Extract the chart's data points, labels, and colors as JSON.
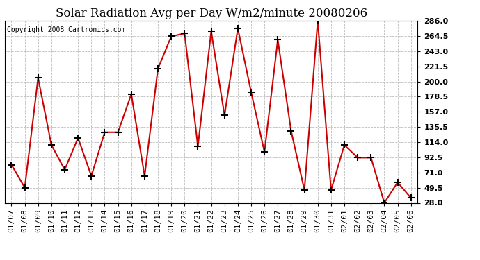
{
  "title": "Solar Radiation Avg per Day W/m2/minute 20080206",
  "copyright": "Copyright 2008 Cartronics.com",
  "dates": [
    "01/07",
    "01/08",
    "01/09",
    "01/10",
    "01/11",
    "01/12",
    "01/13",
    "01/14",
    "01/15",
    "01/16",
    "01/17",
    "01/18",
    "01/19",
    "01/20",
    "01/21",
    "01/22",
    "01/23",
    "01/24",
    "01/25",
    "01/26",
    "01/27",
    "01/28",
    "01/29",
    "01/30",
    "01/31",
    "02/01",
    "02/02",
    "02/03",
    "02/04",
    "02/05",
    "02/06"
  ],
  "values": [
    82,
    49.5,
    205,
    110,
    75,
    120,
    66,
    128,
    128,
    182,
    66,
    218,
    264,
    268,
    108,
    271,
    152,
    275,
    185,
    100,
    259,
    130,
    46,
    286,
    46,
    110,
    92,
    92,
    28,
    57,
    35
  ],
  "line_color": "#cc0000",
  "marker_color": "#000000",
  "bg_color": "#ffffff",
  "grid_color": "#bbbbbb",
  "ylim_min": 28.0,
  "ylim_max": 286.0,
  "yticks": [
    28.0,
    49.5,
    71.0,
    92.5,
    114.0,
    135.5,
    157.0,
    178.5,
    200.0,
    221.5,
    243.0,
    264.5,
    286.0
  ],
  "title_fontsize": 12,
  "copyright_fontsize": 7,
  "tick_fontsize": 8,
  "ylabel_fontweight": "bold"
}
